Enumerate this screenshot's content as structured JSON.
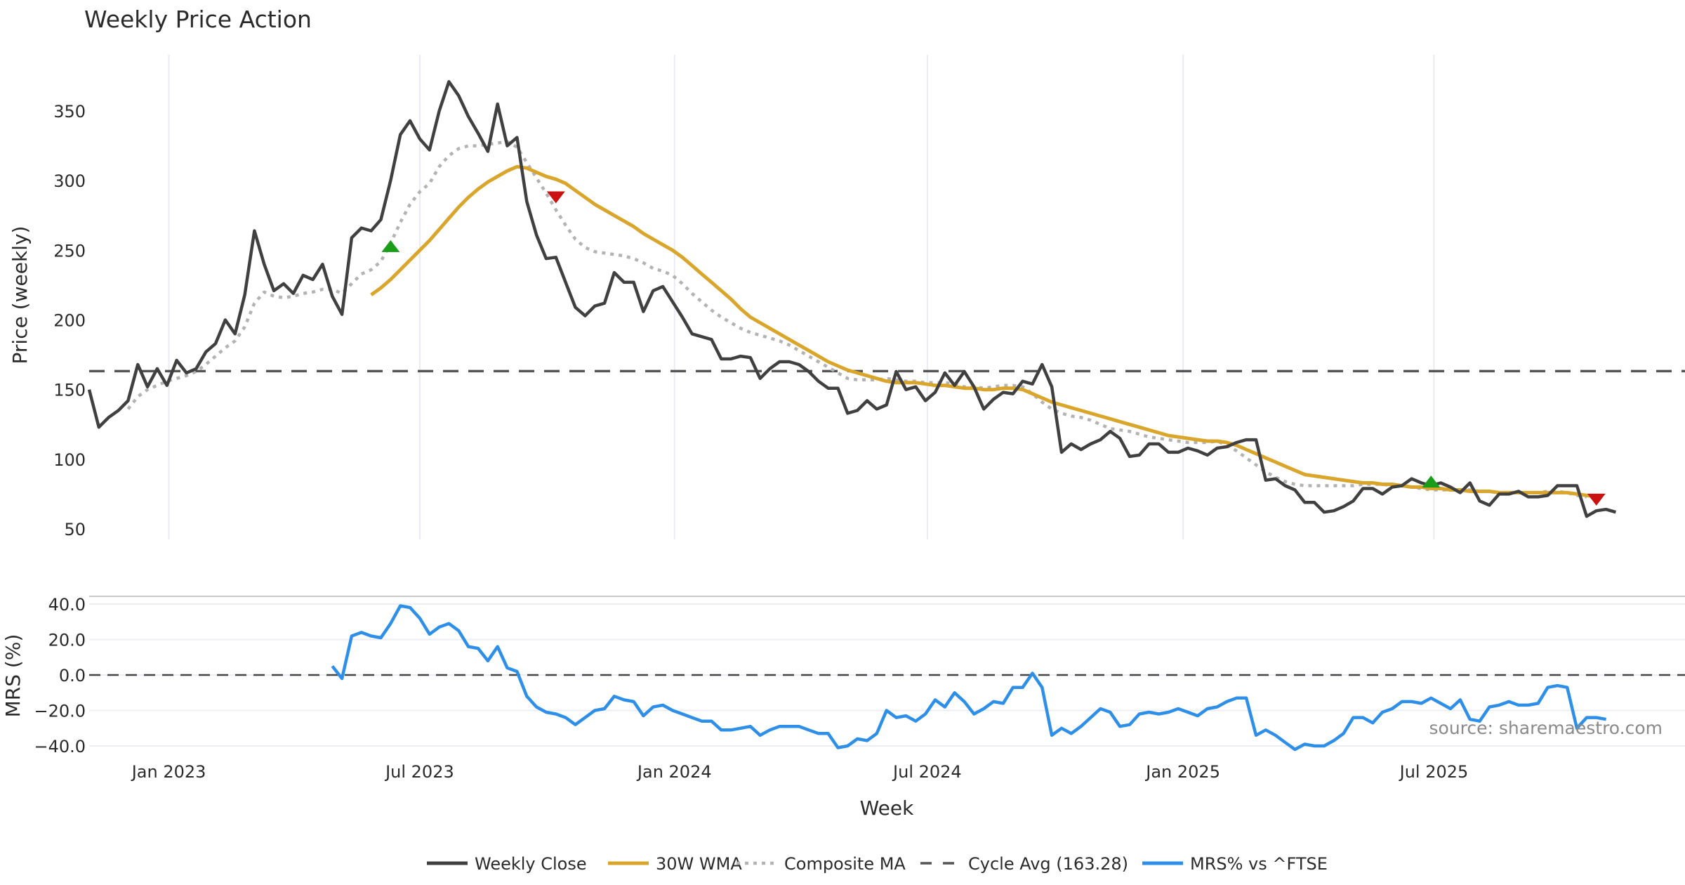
{
  "chart_data": [
    {
      "type": "line",
      "title": "Weekly Price Action",
      "xlabel": "",
      "ylabel": "Price (weekly)",
      "ylim": [
        40,
        380
      ],
      "yticks": [
        350,
        300,
        250,
        200,
        150,
        100,
        50
      ],
      "x_unit": "week index (0 = early Nov 2022)",
      "x_ticks": [
        {
          "label": "Jan 2023",
          "x": 8.2
        },
        {
          "label": "Jul 2023",
          "x": 34.0
        },
        {
          "label": "Jan 2024",
          "x": 60.2
        },
        {
          "label": "Jul 2024",
          "x": 86.2
        },
        {
          "label": "Jan 2025",
          "x": 112.5
        },
        {
          "label": "Jul 2025",
          "x": 138.3
        }
      ],
      "grid": "vertical",
      "cycle_avg": 163.28,
      "series": [
        {
          "name": "Weekly Close",
          "color": "#404040",
          "style": "solid",
          "start": 0,
          "values": [
            150,
            123,
            130,
            135,
            142,
            168,
            152,
            165,
            153,
            171,
            162,
            165,
            177,
            183,
            200,
            190,
            218,
            264,
            240,
            221,
            226,
            219,
            232,
            229,
            240,
            217,
            204,
            259,
            266,
            264,
            272,
            300,
            333,
            343,
            330,
            322,
            350,
            371,
            361,
            346,
            334,
            321,
            355,
            325,
            331,
            285,
            261,
            244,
            245,
            227,
            209,
            203,
            210,
            212,
            234,
            227,
            227,
            206,
            221,
            224,
            213,
            202,
            190,
            188,
            186,
            172,
            172,
            174,
            173,
            158,
            165,
            170,
            170,
            168,
            163,
            156,
            151,
            151,
            133,
            135,
            142,
            136,
            139,
            163,
            150,
            152,
            142,
            148,
            162,
            153,
            163,
            152,
            136,
            143,
            148,
            147,
            156,
            154,
            168,
            152,
            105,
            111,
            107,
            111,
            114,
            120,
            115,
            102,
            103,
            111,
            111,
            105,
            105,
            108,
            106,
            103,
            108,
            109,
            112,
            114,
            114,
            85,
            86,
            81,
            78,
            69,
            69,
            62,
            63,
            66,
            70,
            79,
            79,
            75,
            80,
            81,
            86,
            83,
            81,
            83,
            80,
            76,
            83,
            70,
            67,
            75,
            75,
            77,
            73,
            73,
            74,
            81,
            81,
            81,
            59,
            63,
            64,
            62
          ]
        },
        {
          "name": "30W WMA",
          "color": "#d9a52b",
          "style": "solid",
          "start": 29,
          "values": [
            218,
            223,
            229,
            236,
            243,
            250,
            257,
            265,
            273,
            281,
            288,
            294,
            299,
            303,
            307,
            310,
            309,
            306,
            303,
            301,
            298,
            293,
            288,
            283,
            279,
            275,
            271,
            267,
            262,
            258,
            254,
            250,
            245,
            239,
            233,
            227,
            221,
            215,
            208,
            202,
            198,
            194,
            190,
            186,
            182,
            178,
            174,
            170,
            167,
            164,
            162,
            160,
            158,
            156,
            155,
            155,
            155,
            154,
            153,
            153,
            152,
            151,
            151,
            150,
            150,
            151,
            151,
            150,
            147,
            144,
            141,
            139,
            137,
            135,
            133,
            131,
            129,
            127,
            125,
            123,
            121,
            119,
            117,
            116,
            115,
            114,
            113,
            113,
            112,
            110,
            107,
            104,
            101,
            98,
            95,
            92,
            89,
            88,
            87,
            86,
            85,
            84,
            83,
            83,
            82,
            82,
            81,
            80,
            80,
            79,
            79,
            78,
            78,
            77,
            77,
            77,
            76,
            76,
            76,
            76,
            76,
            76,
            76,
            76,
            75,
            74,
            73
          ]
        },
        {
          "name": "Composite MA",
          "color": "#b3b3b3",
          "style": "dotted",
          "start": 4,
          "values": [
            136,
            145,
            150,
            153,
            156,
            158,
            160,
            163,
            168,
            174,
            180,
            185,
            195,
            212,
            220,
            217,
            216,
            217,
            219,
            220,
            222,
            222,
            219,
            226,
            233,
            236,
            242,
            255,
            270,
            283,
            292,
            298,
            310,
            318,
            323,
            325,
            325,
            326,
            327,
            328,
            324,
            313,
            302,
            291,
            279,
            268,
            258,
            252,
            249,
            248,
            247,
            246,
            244,
            241,
            237,
            235,
            232,
            226,
            219,
            213,
            207,
            202,
            198,
            194,
            191,
            189,
            187,
            185,
            182,
            178,
            174,
            170,
            166,
            162,
            158,
            157,
            157,
            157,
            158,
            157,
            156,
            156,
            155,
            155,
            155,
            154,
            152,
            152,
            151,
            152,
            153,
            153,
            152,
            147,
            141,
            136,
            133,
            131,
            130,
            128,
            125,
            122,
            121,
            120,
            118,
            116,
            115,
            114,
            113,
            112,
            112,
            112,
            113,
            110,
            106,
            101,
            96,
            91,
            87,
            84,
            82,
            81,
            81,
            81,
            81,
            81,
            81,
            82,
            82,
            82,
            81,
            81,
            80,
            79,
            78,
            78,
            78,
            78,
            78,
            77,
            77,
            76,
            76,
            76,
            76,
            76,
            77,
            77,
            76,
            74,
            73
          ]
        }
      ],
      "signals": [
        {
          "type": "buy",
          "x": 31,
          "y": 253,
          "color": "#1a9e1a"
        },
        {
          "type": "sell",
          "x": 48,
          "y": 288,
          "color": "#cc1111"
        },
        {
          "type": "buy",
          "x": 138,
          "y": 84,
          "color": "#1a9e1a"
        },
        {
          "type": "sell",
          "x": 155,
          "y": 71,
          "color": "#cc1111"
        }
      ]
    },
    {
      "type": "line",
      "title": "",
      "xlabel": "Week",
      "ylabel": "MRS (%)",
      "ylim": [
        -45,
        43
      ],
      "yticks": [
        "40.0",
        "20.0",
        "0.0",
        "−20.0",
        "−40.0"
      ],
      "ytick_values": [
        40,
        20,
        0,
        -20,
        -40
      ],
      "grid": "horizontal",
      "zero_line": 0,
      "series": [
        {
          "name": "MRS% vs ^FTSE",
          "color": "#2e8fe8",
          "style": "solid",
          "start": 25,
          "values": [
            5,
            -2,
            22,
            24,
            22,
            21,
            29,
            39,
            38,
            32,
            23,
            27,
            29,
            25,
            16,
            15,
            8,
            16,
            4,
            2,
            -12,
            -18,
            -21,
            -22,
            -24,
            -28,
            -24,
            -20,
            -19,
            -12,
            -14,
            -15,
            -23,
            -18,
            -17,
            -20,
            -22,
            -24,
            -26,
            -26,
            -31,
            -31,
            -30,
            -29,
            -34,
            -31,
            -29,
            -29,
            -29,
            -31,
            -33,
            -33,
            -41,
            -40,
            -36,
            -37,
            -33,
            -20,
            -24,
            -23,
            -26,
            -22,
            -14,
            -18,
            -10,
            -15,
            -22,
            -19,
            -15,
            -16,
            -7,
            -7,
            1,
            -7,
            -34,
            -30,
            -33,
            -29,
            -24,
            -19,
            -21,
            -29,
            -28,
            -22,
            -21,
            -22,
            -21,
            -19,
            -21,
            -23,
            -19,
            -18,
            -15,
            -13,
            -13,
            -34,
            -31,
            -34,
            -38,
            -42,
            -39,
            -40,
            -40,
            -37,
            -33,
            -24,
            -24,
            -27,
            -21,
            -19,
            -15,
            -15,
            -16,
            -13,
            -16,
            -19,
            -14,
            -25,
            -26,
            -18,
            -17,
            -15,
            -17,
            -17,
            -16,
            -7,
            -6,
            -7,
            -30,
            -24,
            -24,
            -25
          ]
        }
      ]
    }
  ],
  "legend": {
    "placement": "bottom-center",
    "entries": [
      {
        "label": "Weekly Close",
        "color": "#404040",
        "style": "solid"
      },
      {
        "label": "30W WMA",
        "color": "#d9a52b",
        "style": "solid"
      },
      {
        "label": "Composite MA",
        "color": "#b3b3b3",
        "style": "dotted"
      },
      {
        "label": "Cycle Avg (163.28)",
        "color": "#555555",
        "style": "dashed"
      },
      {
        "label": "MRS% vs ^FTSE",
        "color": "#2e8fe8",
        "style": "solid"
      }
    ]
  },
  "source": "source: sharemaestro.com"
}
